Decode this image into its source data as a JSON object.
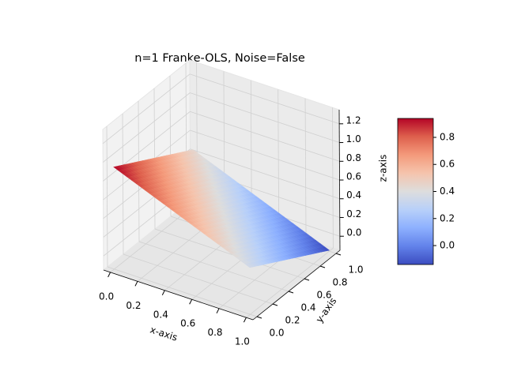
{
  "chart_data": {
    "type": "surface3d",
    "title": "n=1 Franke-OLS, Noise=False",
    "xlabel": "x-axis",
    "ylabel": "y-axis",
    "zlabel": "z-axis",
    "x": [
      0,
      1
    ],
    "y": [
      0,
      1
    ],
    "z": [
      [
        0.94,
        0.35
      ],
      [
        0.45,
        -0.14
      ]
    ],
    "cmap": "coolwarm",
    "xlim": [
      -0.05,
      1.05
    ],
    "ylim": [
      -0.05,
      1.05
    ],
    "zlim": [
      -0.15,
      1.35
    ],
    "xticks": [
      {
        "value": 0,
        "label": "0.0"
      },
      0.2,
      0.4,
      0.6,
      0.8,
      {
        "value": 1,
        "label": "1.0"
      }
    ],
    "yticks": [
      {
        "value": 0,
        "label": "0.0"
      },
      0.2,
      0.4,
      0.6,
      0.8,
      {
        "value": 1,
        "label": "1.0"
      }
    ],
    "zticks": [
      {
        "value": 0,
        "label": "0.0"
      },
      0.2,
      0.4,
      0.6,
      0.8,
      {
        "value": 1,
        "label": "1.0"
      },
      1.2
    ],
    "grid": true,
    "colorbar": {
      "clim": [
        -0.14,
        0.94
      ],
      "ticks": [
        {
          "value": 0,
          "label": "0.0"
        },
        0.2,
        0.4,
        0.6,
        0.8
      ]
    }
  }
}
